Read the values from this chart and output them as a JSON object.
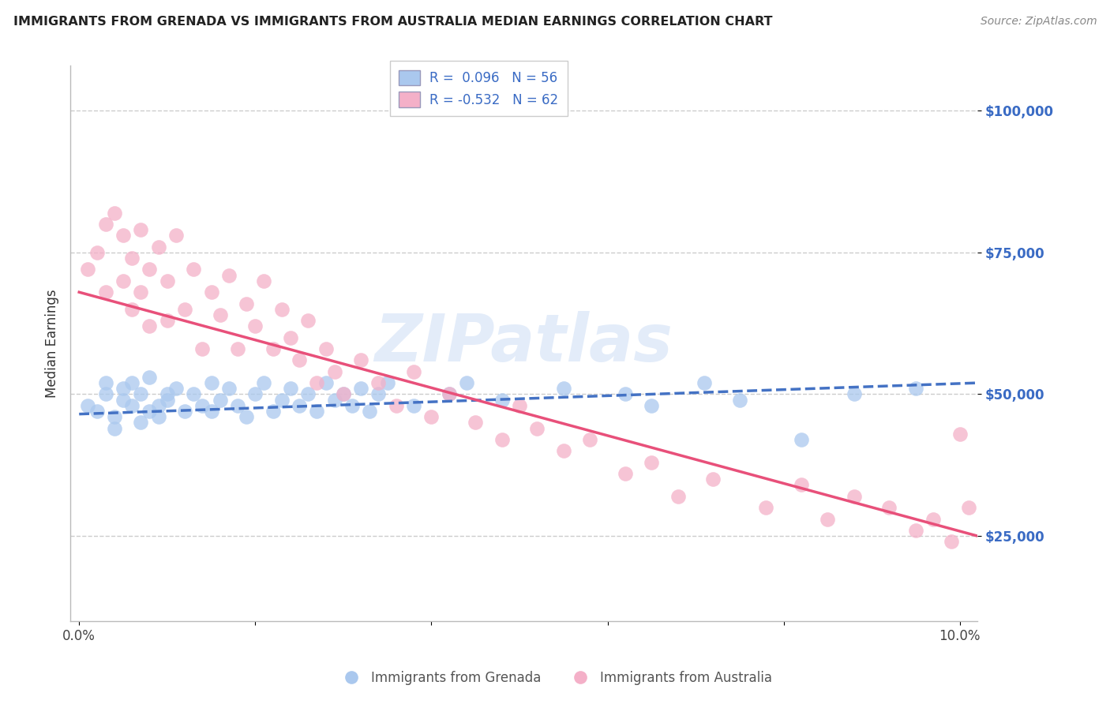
{
  "title": "IMMIGRANTS FROM GRENADA VS IMMIGRANTS FROM AUSTRALIA MEDIAN EARNINGS CORRELATION CHART",
  "source": "Source: ZipAtlas.com",
  "ylabel": "Median Earnings",
  "xlim": [
    -0.001,
    0.102
  ],
  "ylim": [
    10000,
    108000
  ],
  "yticks": [
    25000,
    50000,
    75000,
    100000
  ],
  "xticks": [
    0.0,
    0.02,
    0.04,
    0.06,
    0.08,
    0.1
  ],
  "xtick_labels": [
    "0.0%",
    "",
    "",
    "",
    "",
    "10.0%"
  ],
  "ytick_labels": [
    "$25,000",
    "$50,000",
    "$75,000",
    "$100,000"
  ],
  "legend_R1": "R =  0.096",
  "legend_N1": "N = 56",
  "legend_R2": "R = -0.532",
  "legend_N2": "N = 62",
  "color_grenada": "#aac8ee",
  "color_australia": "#f4b0c8",
  "trendline_grenada": "#4472c4",
  "trendline_australia": "#e8507a",
  "watermark": "ZIPatlas",
  "watermark_color": "#ccddf5",
  "label_grenada": "Immigrants from Grenada",
  "label_australia": "Immigrants from Australia",
  "grenada_x": [
    0.001,
    0.002,
    0.003,
    0.003,
    0.004,
    0.004,
    0.005,
    0.005,
    0.006,
    0.006,
    0.007,
    0.007,
    0.008,
    0.008,
    0.009,
    0.009,
    0.01,
    0.01,
    0.011,
    0.012,
    0.013,
    0.014,
    0.015,
    0.015,
    0.016,
    0.017,
    0.018,
    0.019,
    0.02,
    0.021,
    0.022,
    0.023,
    0.024,
    0.025,
    0.026,
    0.027,
    0.028,
    0.029,
    0.03,
    0.031,
    0.032,
    0.033,
    0.034,
    0.035,
    0.038,
    0.042,
    0.044,
    0.048,
    0.055,
    0.062,
    0.065,
    0.071,
    0.075,
    0.082,
    0.088,
    0.095
  ],
  "grenada_y": [
    48000,
    47000,
    50000,
    52000,
    46000,
    44000,
    49000,
    51000,
    48000,
    52000,
    45000,
    50000,
    47000,
    53000,
    48000,
    46000,
    50000,
    49000,
    51000,
    47000,
    50000,
    48000,
    52000,
    47000,
    49000,
    51000,
    48000,
    46000,
    50000,
    52000,
    47000,
    49000,
    51000,
    48000,
    50000,
    47000,
    52000,
    49000,
    50000,
    48000,
    51000,
    47000,
    50000,
    52000,
    48000,
    50000,
    52000,
    49000,
    51000,
    50000,
    48000,
    52000,
    49000,
    42000,
    50000,
    51000
  ],
  "australia_x": [
    0.001,
    0.002,
    0.003,
    0.003,
    0.004,
    0.005,
    0.005,
    0.006,
    0.006,
    0.007,
    0.007,
    0.008,
    0.008,
    0.009,
    0.01,
    0.01,
    0.011,
    0.012,
    0.013,
    0.014,
    0.015,
    0.016,
    0.017,
    0.018,
    0.019,
    0.02,
    0.021,
    0.022,
    0.023,
    0.024,
    0.025,
    0.026,
    0.027,
    0.028,
    0.029,
    0.03,
    0.032,
    0.034,
    0.036,
    0.038,
    0.04,
    0.042,
    0.045,
    0.048,
    0.05,
    0.052,
    0.055,
    0.058,
    0.062,
    0.065,
    0.068,
    0.072,
    0.078,
    0.082,
    0.085,
    0.088,
    0.092,
    0.095,
    0.097,
    0.099,
    0.1,
    0.101
  ],
  "australia_y": [
    72000,
    75000,
    80000,
    68000,
    82000,
    78000,
    70000,
    74000,
    65000,
    79000,
    68000,
    72000,
    62000,
    76000,
    70000,
    63000,
    78000,
    65000,
    72000,
    58000,
    68000,
    64000,
    71000,
    58000,
    66000,
    62000,
    70000,
    58000,
    65000,
    60000,
    56000,
    63000,
    52000,
    58000,
    54000,
    50000,
    56000,
    52000,
    48000,
    54000,
    46000,
    50000,
    45000,
    42000,
    48000,
    44000,
    40000,
    42000,
    36000,
    38000,
    32000,
    35000,
    30000,
    34000,
    28000,
    32000,
    30000,
    26000,
    28000,
    24000,
    43000,
    30000
  ],
  "grenada_trend_x0": 0.0,
  "grenada_trend_x1": 0.102,
  "grenada_trend_y0": 46500,
  "grenada_trend_y1": 52000,
  "australia_trend_x0": 0.0,
  "australia_trend_x1": 0.102,
  "australia_trend_y0": 68000,
  "australia_trend_y1": 25000
}
